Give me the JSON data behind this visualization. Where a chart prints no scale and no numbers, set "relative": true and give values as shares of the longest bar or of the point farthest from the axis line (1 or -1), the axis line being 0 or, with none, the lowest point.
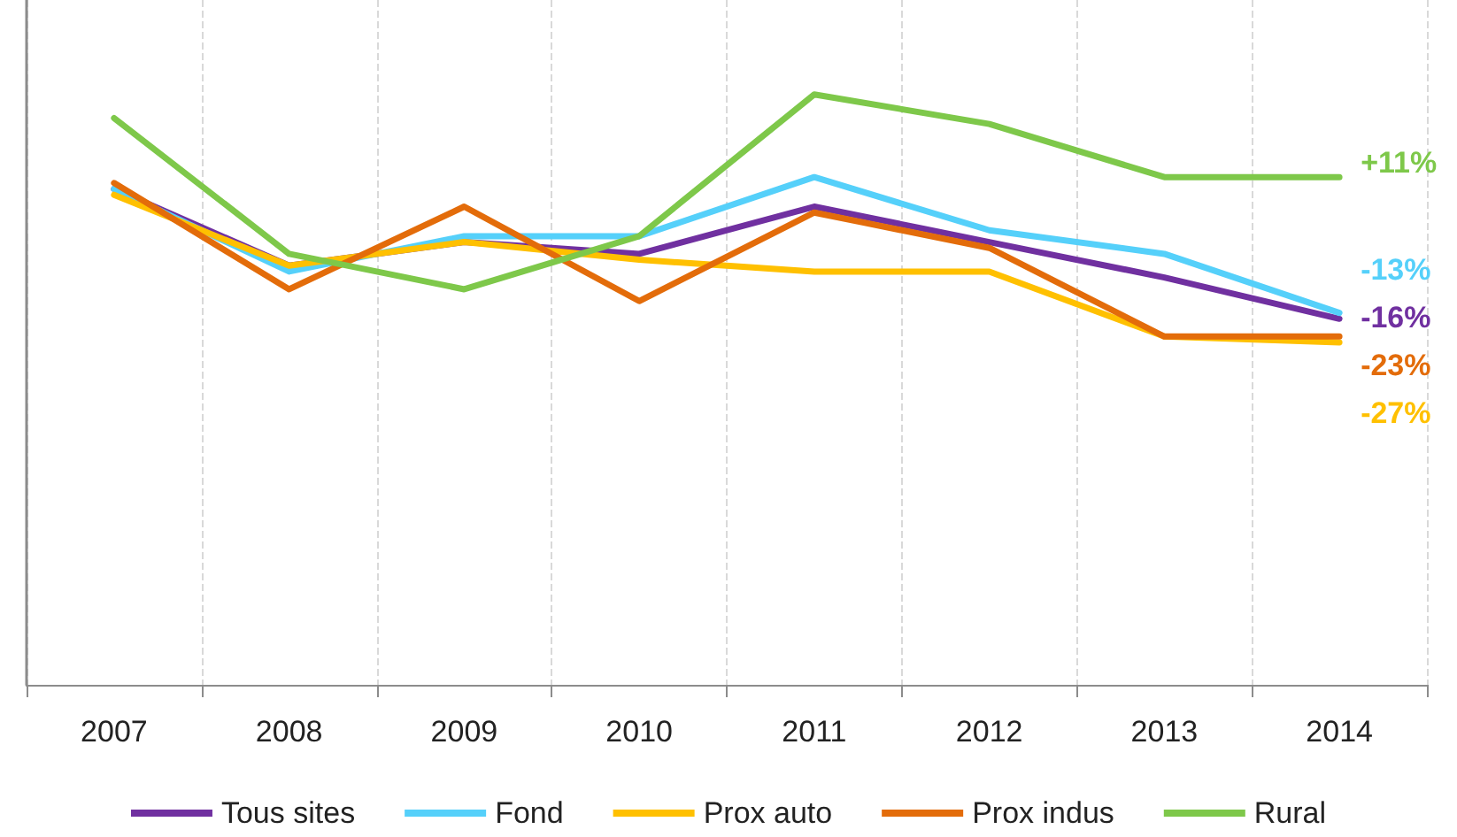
{
  "chart_data": {
    "type": "line",
    "relative": true,
    "categories": [
      "2007",
      "2008",
      "2009",
      "2010",
      "2011",
      "2012",
      "2013",
      "2014"
    ],
    "series": [
      {
        "name": "Tous sites",
        "color": "#7030a0",
        "values": [
          0.84,
          0.71,
          0.75,
          0.73,
          0.81,
          0.75,
          0.69,
          0.62
        ]
      },
      {
        "name": "Fond",
        "color": "#55d0fa",
        "values": [
          0.84,
          0.7,
          0.76,
          0.76,
          0.86,
          0.77,
          0.73,
          0.63
        ]
      },
      {
        "name": "Prox auto",
        "color": "#ffc000",
        "values": [
          0.83,
          0.71,
          0.75,
          0.72,
          0.7,
          0.7,
          0.59,
          0.58
        ]
      },
      {
        "name": "Prox indus",
        "color": "#e36c0a",
        "values": [
          0.85,
          0.67,
          0.81,
          0.65,
          0.8,
          0.74,
          0.59,
          0.59
        ]
      },
      {
        "name": "Rural",
        "color": "#7ec84a",
        "values": [
          0.96,
          0.73,
          0.67,
          0.76,
          1,
          0.95,
          0.86,
          0.86
        ]
      }
    ],
    "annotations": [
      {
        "text": "+11%",
        "x": "2014",
        "y": 0.86
      },
      {
        "text": "-13%",
        "x": "2014",
        "y": 0.63
      },
      {
        "text": "-16%",
        "x": "2014",
        "y": 0.62
      },
      {
        "text": "-23%",
        "x": "2014",
        "y": 0.59
      },
      {
        "text": "-27%",
        "x": "2014",
        "y": 0.58
      }
    ],
    "legend": "bottom",
    "grid": "x",
    "marker": "none",
    "line_style": "solid"
  }
}
